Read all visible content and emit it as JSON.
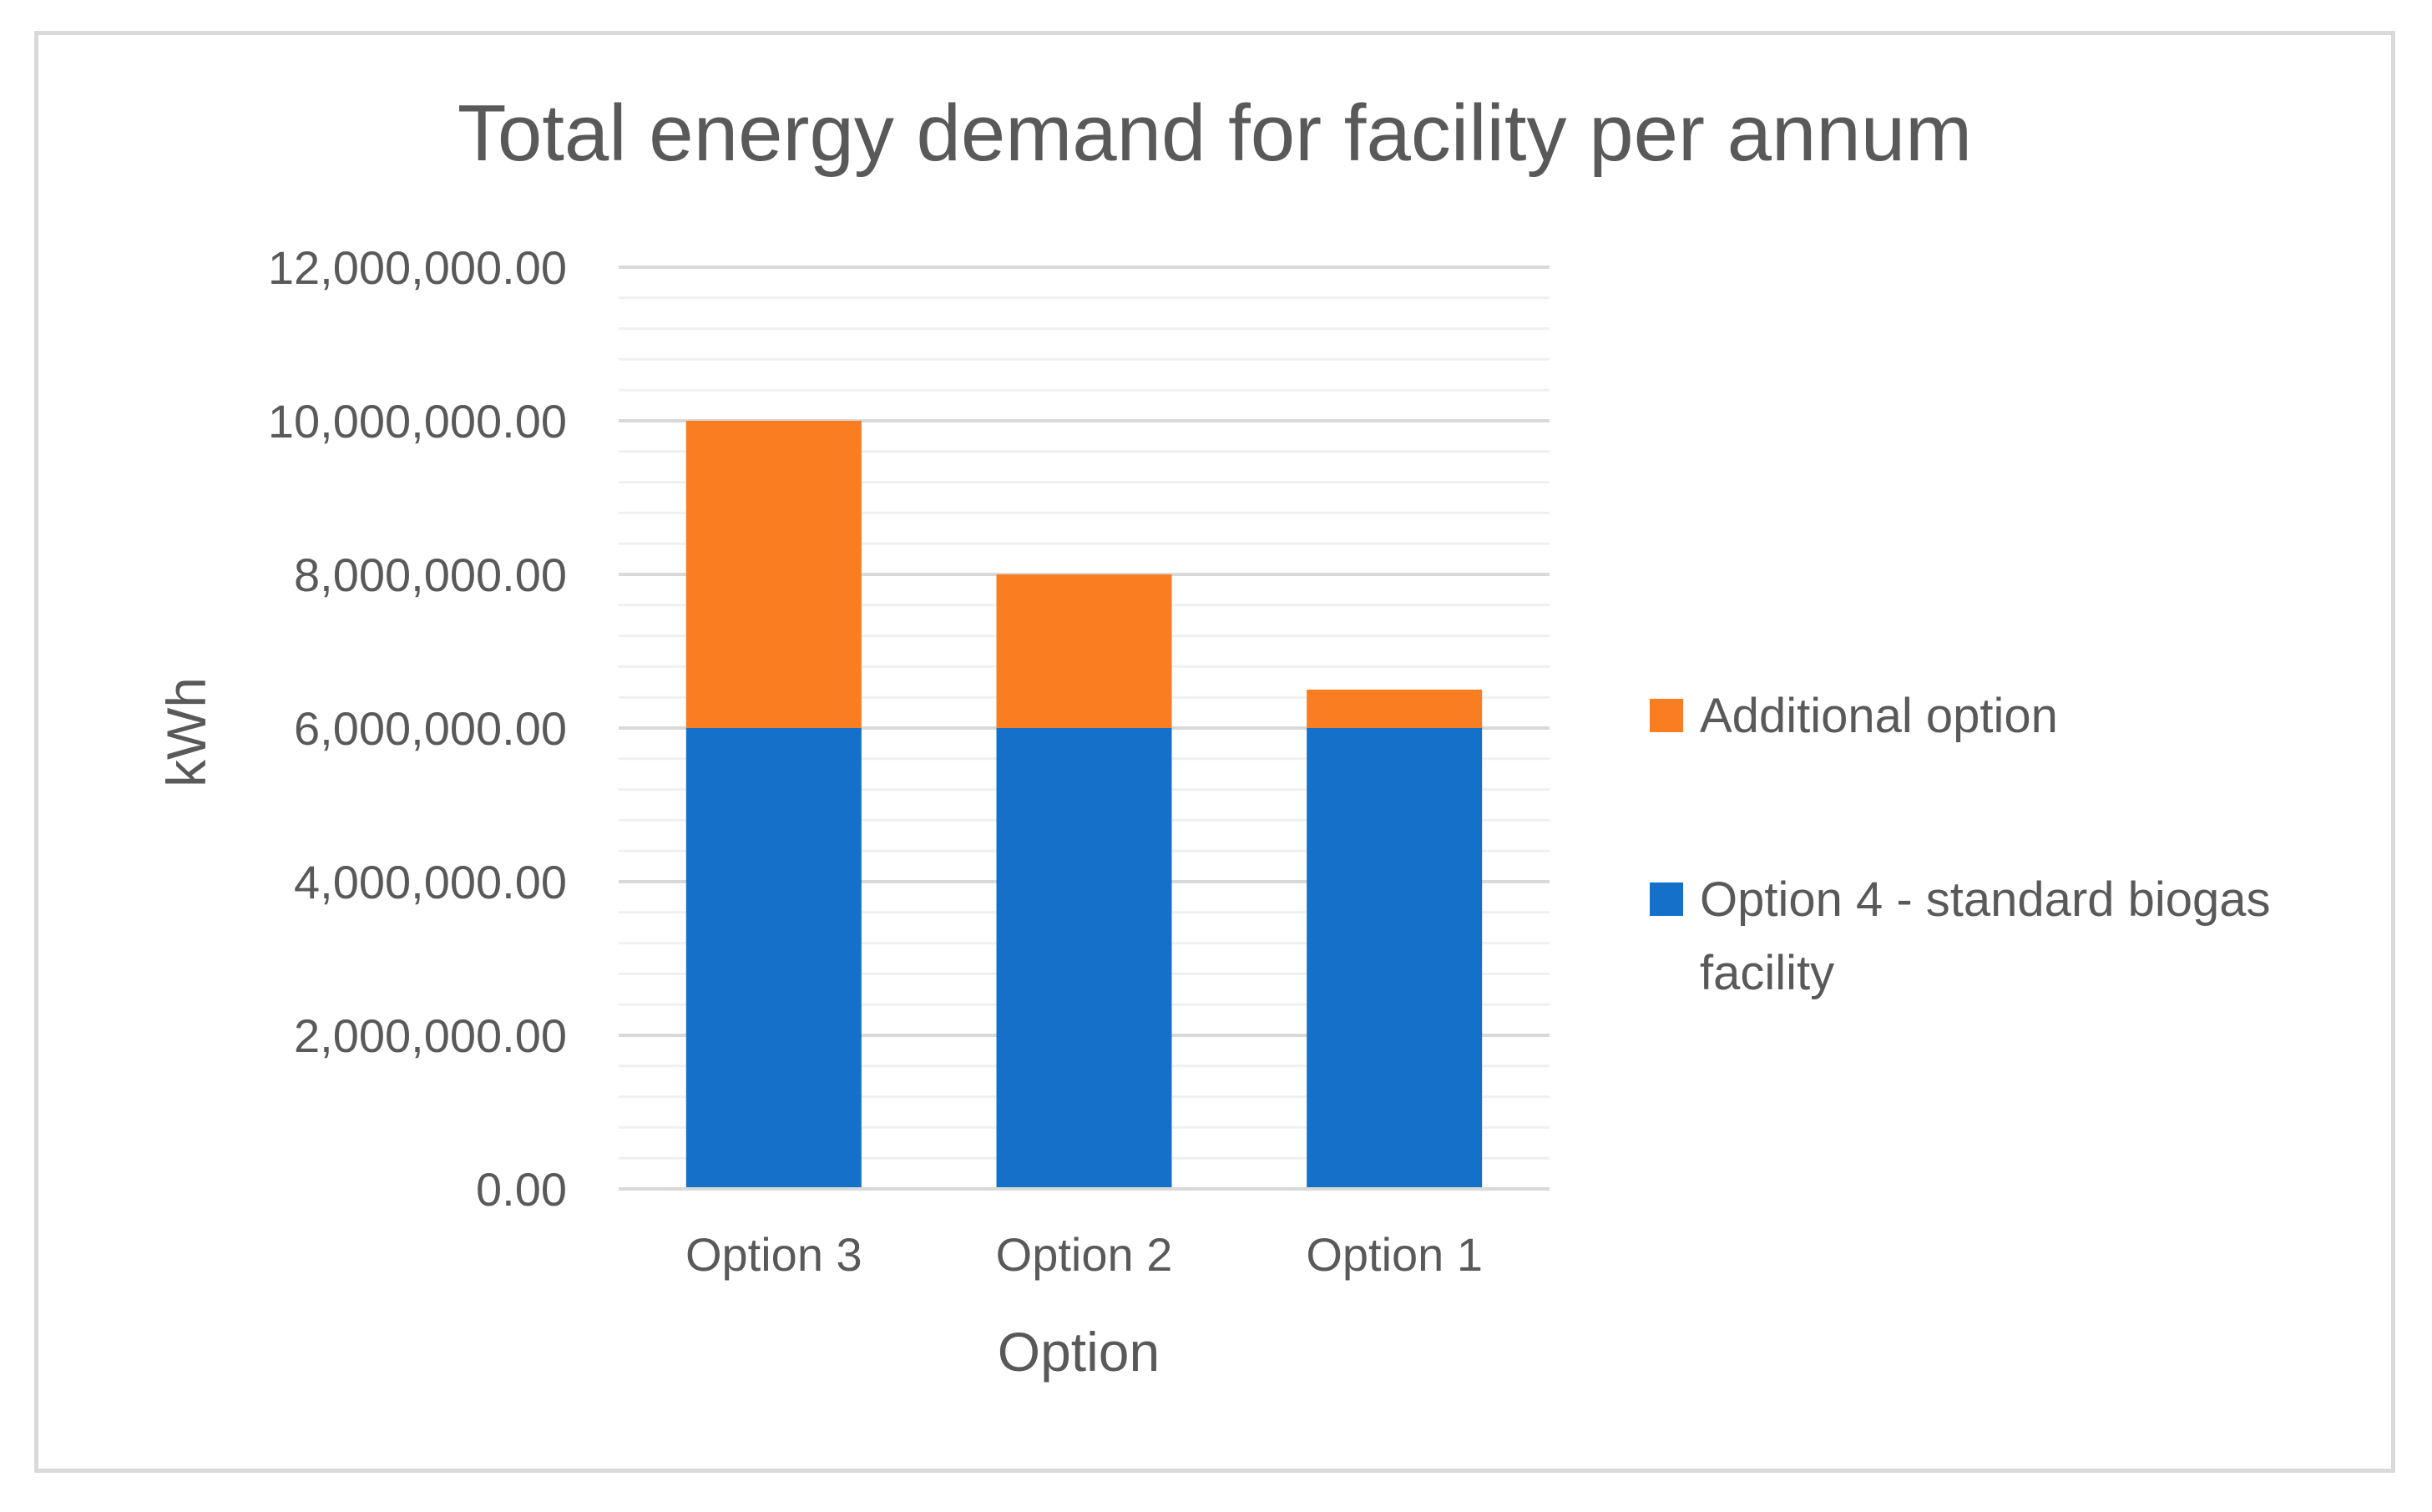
{
  "chart_data": {
    "type": "bar",
    "stacked": true,
    "title": "Total energy demand for facility per annum",
    "xlabel": "Option",
    "ylabel": "kWh",
    "categories": [
      "Option 3",
      "Option 2",
      "Option 1"
    ],
    "series": [
      {
        "name": "Option 4 - standard biogas facility",
        "legend_lines": [
          "Option 4 - standard biogas",
          "facility"
        ],
        "color": "#1570c9",
        "values": [
          6000000,
          6000000,
          6000000
        ]
      },
      {
        "name": "Additional option",
        "legend_lines": [
          "Additional option"
        ],
        "color": "#fa7d22",
        "values": [
          4000000,
          2000000,
          500000
        ]
      }
    ],
    "ylim": [
      0,
      12000000
    ],
    "yticks": [
      0,
      2000000,
      4000000,
      6000000,
      8000000,
      10000000,
      12000000
    ],
    "ytick_labels": [
      "0.00",
      "2,000,000.00",
      "4,000,000.00",
      "6,000,000.00",
      "8,000,000.00",
      "10,000,000.00",
      "12,000,000.00"
    ],
    "grid": true,
    "legend_position": "right",
    "legend_order": [
      1,
      0
    ]
  },
  "colors": {
    "major_grid": "#d9d9d9",
    "minor_grid": "#f0f0f0",
    "axis": "#d9d9d9"
  }
}
